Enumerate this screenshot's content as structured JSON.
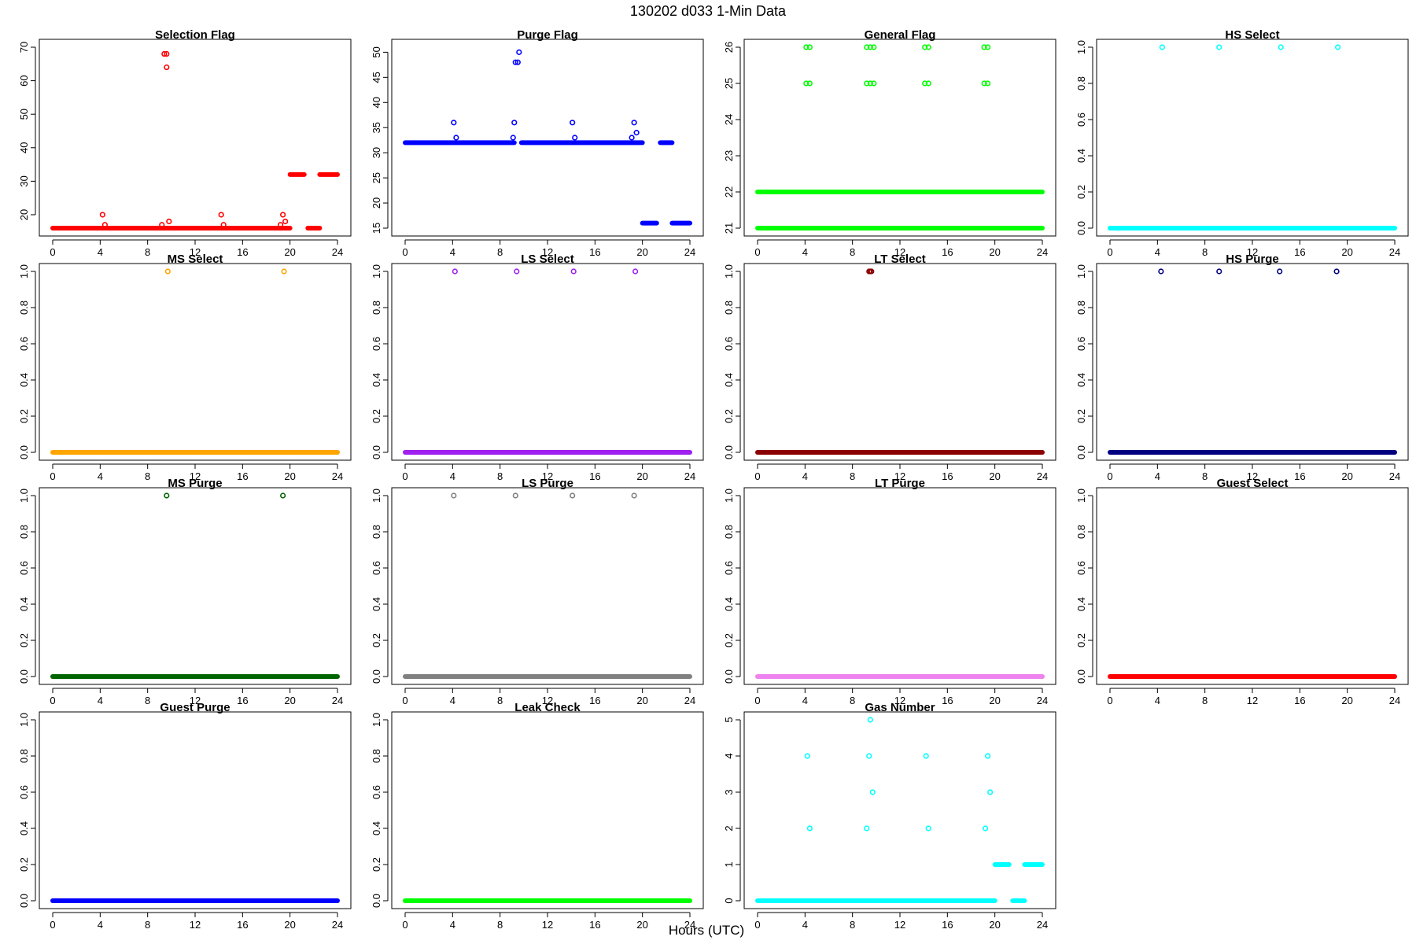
{
  "figure": {
    "title": "130202   d033   1-Min Data",
    "xlabel": "Hours (UTC)"
  },
  "chart_data": [
    {
      "type": "scatter",
      "title": "Selection Flag",
      "xlim": [
        0,
        24
      ],
      "xticks": [
        0,
        4,
        8,
        12,
        16,
        20,
        24
      ],
      "ylim": [
        16,
        70
      ],
      "yticks": [
        20,
        30,
        40,
        50,
        60,
        70
      ],
      "color": "#ff0000",
      "series": [
        {
          "x_start": 0,
          "x_end": 20.0,
          "y": 16
        },
        {
          "x_start": 20.0,
          "x_end": 21.2,
          "y": 32
        },
        {
          "x_start": 21.5,
          "x_end": 22.5,
          "y": 16
        },
        {
          "x_start": 22.5,
          "x_end": 24,
          "y": 32
        }
      ],
      "points": [
        {
          "x": 4.2,
          "y": 20
        },
        {
          "x": 4.4,
          "y": 17
        },
        {
          "x": 9.2,
          "y": 17
        },
        {
          "x": 9.4,
          "y": 68
        },
        {
          "x": 9.6,
          "y": 68
        },
        {
          "x": 9.6,
          "y": 64
        },
        {
          "x": 9.8,
          "y": 18
        },
        {
          "x": 14.2,
          "y": 20
        },
        {
          "x": 14.4,
          "y": 17
        },
        {
          "x": 19.2,
          "y": 17
        },
        {
          "x": 19.4,
          "y": 20
        },
        {
          "x": 19.6,
          "y": 18
        }
      ]
    },
    {
      "type": "scatter",
      "title": "Purge Flag",
      "xlim": [
        0,
        24
      ],
      "xticks": [
        0,
        4,
        8,
        12,
        16,
        20,
        24
      ],
      "ylim": [
        15,
        51
      ],
      "yticks": [
        15,
        20,
        25,
        30,
        35,
        40,
        45,
        50
      ],
      "color": "#0000ff",
      "series": [
        {
          "x_start": 0,
          "x_end": 9.2,
          "y": 32
        },
        {
          "x_start": 9.8,
          "x_end": 20.0,
          "y": 32
        },
        {
          "x_start": 20.0,
          "x_end": 21.2,
          "y": 16
        },
        {
          "x_start": 21.5,
          "x_end": 22.5,
          "y": 32
        },
        {
          "x_start": 22.5,
          "x_end": 24,
          "y": 16
        }
      ],
      "points": [
        {
          "x": 4.1,
          "y": 36
        },
        {
          "x": 4.3,
          "y": 33
        },
        {
          "x": 9.1,
          "y": 33
        },
        {
          "x": 9.2,
          "y": 36
        },
        {
          "x": 9.3,
          "y": 48
        },
        {
          "x": 9.5,
          "y": 48
        },
        {
          "x": 9.6,
          "y": 50
        },
        {
          "x": 14.1,
          "y": 36
        },
        {
          "x": 14.3,
          "y": 33
        },
        {
          "x": 19.1,
          "y": 33
        },
        {
          "x": 19.3,
          "y": 36
        },
        {
          "x": 19.5,
          "y": 34
        }
      ]
    },
    {
      "type": "scatter",
      "title": "General Flag",
      "xlim": [
        0,
        24
      ],
      "xticks": [
        0,
        4,
        8,
        12,
        16,
        20,
        24
      ],
      "ylim": [
        21,
        26
      ],
      "yticks": [
        21,
        22,
        23,
        24,
        25,
        26
      ],
      "color": "#00ff00",
      "series": [
        {
          "x_start": 0,
          "x_end": 24,
          "y": 22
        },
        {
          "x_start": 0,
          "x_end": 24,
          "y": 21
        }
      ],
      "points": [
        {
          "x": 4.1,
          "y": 26
        },
        {
          "x": 4.4,
          "y": 26
        },
        {
          "x": 4.1,
          "y": 25
        },
        {
          "x": 4.4,
          "y": 25
        },
        {
          "x": 9.2,
          "y": 26
        },
        {
          "x": 9.5,
          "y": 26
        },
        {
          "x": 9.8,
          "y": 26
        },
        {
          "x": 9.2,
          "y": 25
        },
        {
          "x": 9.5,
          "y": 25
        },
        {
          "x": 9.8,
          "y": 25
        },
        {
          "x": 14.1,
          "y": 26
        },
        {
          "x": 14.4,
          "y": 26
        },
        {
          "x": 14.1,
          "y": 25
        },
        {
          "x": 14.4,
          "y": 25
        },
        {
          "x": 19.1,
          "y": 26
        },
        {
          "x": 19.4,
          "y": 26
        },
        {
          "x": 19.1,
          "y": 25
        },
        {
          "x": 19.4,
          "y": 25
        }
      ]
    },
    {
      "type": "scatter",
      "title": "HS Select",
      "xlim": [
        0,
        24
      ],
      "xticks": [
        0,
        4,
        8,
        12,
        16,
        20,
        24
      ],
      "ylim": [
        0,
        1
      ],
      "yticks": [
        0.0,
        0.2,
        0.4,
        0.6,
        0.8,
        1.0
      ],
      "color": "#00ffff",
      "series": [
        {
          "x_start": 0,
          "x_end": 24,
          "y": 0
        }
      ],
      "points": [
        {
          "x": 4.4,
          "y": 1
        },
        {
          "x": 9.2,
          "y": 1
        },
        {
          "x": 14.4,
          "y": 1
        },
        {
          "x": 19.2,
          "y": 1
        }
      ]
    },
    {
      "type": "scatter",
      "title": "MS Select",
      "xlim": [
        0,
        24
      ],
      "xticks": [
        0,
        4,
        8,
        12,
        16,
        20,
        24
      ],
      "ylim": [
        0,
        1
      ],
      "yticks": [
        0.0,
        0.2,
        0.4,
        0.6,
        0.8,
        1.0
      ],
      "color": "#ffa500",
      "series": [
        {
          "x_start": 0,
          "x_end": 24,
          "y": 0
        }
      ],
      "points": [
        {
          "x": 9.7,
          "y": 1
        },
        {
          "x": 19.5,
          "y": 1
        }
      ]
    },
    {
      "type": "scatter",
      "title": "LS Select",
      "xlim": [
        0,
        24
      ],
      "xticks": [
        0,
        4,
        8,
        12,
        16,
        20,
        24
      ],
      "ylim": [
        0,
        1
      ],
      "yticks": [
        0.0,
        0.2,
        0.4,
        0.6,
        0.8,
        1.0
      ],
      "color": "#a020f0",
      "series": [
        {
          "x_start": 0,
          "x_end": 24,
          "y": 0
        }
      ],
      "points": [
        {
          "x": 4.2,
          "y": 1
        },
        {
          "x": 9.4,
          "y": 1
        },
        {
          "x": 14.2,
          "y": 1
        },
        {
          "x": 19.4,
          "y": 1
        }
      ]
    },
    {
      "type": "scatter",
      "title": "LT Select",
      "xlim": [
        0,
        24
      ],
      "xticks": [
        0,
        4,
        8,
        12,
        16,
        20,
        24
      ],
      "ylim": [
        0,
        1
      ],
      "yticks": [
        0.0,
        0.2,
        0.4,
        0.6,
        0.8,
        1.0
      ],
      "color": "#8b0000",
      "series": [
        {
          "x_start": 0,
          "x_end": 24,
          "y": 0
        }
      ],
      "points": [
        {
          "x": 9.4,
          "y": 1
        },
        {
          "x": 9.5,
          "y": 1
        },
        {
          "x": 9.6,
          "y": 1
        }
      ]
    },
    {
      "type": "scatter",
      "title": "HS Purge",
      "xlim": [
        0,
        24
      ],
      "xticks": [
        0,
        4,
        8,
        12,
        16,
        20,
        24
      ],
      "ylim": [
        0,
        1
      ],
      "yticks": [
        0.0,
        0.2,
        0.4,
        0.6,
        0.8,
        1.0
      ],
      "color": "#000080",
      "series": [
        {
          "x_start": 0,
          "x_end": 24,
          "y": 0
        }
      ],
      "points": [
        {
          "x": 4.3,
          "y": 1
        },
        {
          "x": 9.2,
          "y": 1
        },
        {
          "x": 14.3,
          "y": 1
        },
        {
          "x": 19.1,
          "y": 1
        }
      ]
    },
    {
      "type": "scatter",
      "title": "MS Purge",
      "xlim": [
        0,
        24
      ],
      "xticks": [
        0,
        4,
        8,
        12,
        16,
        20,
        24
      ],
      "ylim": [
        0,
        1
      ],
      "yticks": [
        0.0,
        0.2,
        0.4,
        0.6,
        0.8,
        1.0
      ],
      "color": "#006400",
      "series": [
        {
          "x_start": 0,
          "x_end": 24,
          "y": 0
        }
      ],
      "points": [
        {
          "x": 9.6,
          "y": 1
        },
        {
          "x": 19.4,
          "y": 1
        }
      ]
    },
    {
      "type": "scatter",
      "title": "LS Purge",
      "xlim": [
        0,
        24
      ],
      "xticks": [
        0,
        4,
        8,
        12,
        16,
        20,
        24
      ],
      "ylim": [
        0,
        1
      ],
      "yticks": [
        0.0,
        0.2,
        0.4,
        0.6,
        0.8,
        1.0
      ],
      "color": "#808080",
      "series": [
        {
          "x_start": 0,
          "x_end": 24,
          "y": 0
        }
      ],
      "points": [
        {
          "x": 4.1,
          "y": 1
        },
        {
          "x": 9.3,
          "y": 1
        },
        {
          "x": 14.1,
          "y": 1
        },
        {
          "x": 19.3,
          "y": 1
        }
      ]
    },
    {
      "type": "scatter",
      "title": "LT Purge",
      "xlim": [
        0,
        24
      ],
      "xticks": [
        0,
        4,
        8,
        12,
        16,
        20,
        24
      ],
      "ylim": [
        0,
        1
      ],
      "yticks": [
        0.0,
        0.2,
        0.4,
        0.6,
        0.8,
        1.0
      ],
      "color": "#ee82ee",
      "series": [
        {
          "x_start": 0,
          "x_end": 24,
          "y": 0
        }
      ],
      "points": []
    },
    {
      "type": "scatter",
      "title": "Guest Select",
      "xlim": [
        0,
        24
      ],
      "xticks": [
        0,
        4,
        8,
        12,
        16,
        20,
        24
      ],
      "ylim": [
        0,
        1
      ],
      "yticks": [
        0.0,
        0.2,
        0.4,
        0.6,
        0.8,
        1.0
      ],
      "color": "#ff0000",
      "series": [
        {
          "x_start": 0,
          "x_end": 24,
          "y": 0
        }
      ],
      "points": []
    },
    {
      "type": "scatter",
      "title": "Guest Purge",
      "xlim": [
        0,
        24
      ],
      "xticks": [
        0,
        4,
        8,
        12,
        16,
        20,
        24
      ],
      "ylim": [
        0,
        1
      ],
      "yticks": [
        0.0,
        0.2,
        0.4,
        0.6,
        0.8,
        1.0
      ],
      "color": "#0000ff",
      "series": [
        {
          "x_start": 0,
          "x_end": 24,
          "y": 0
        }
      ],
      "points": []
    },
    {
      "type": "scatter",
      "title": "Leak Check",
      "xlim": [
        0,
        24
      ],
      "xticks": [
        0,
        4,
        8,
        12,
        16,
        20,
        24
      ],
      "ylim": [
        0,
        1
      ],
      "yticks": [
        0.0,
        0.2,
        0.4,
        0.6,
        0.8,
        1.0
      ],
      "color": "#00ff00",
      "series": [
        {
          "x_start": 0,
          "x_end": 24,
          "y": 0
        }
      ],
      "points": []
    },
    {
      "type": "scatter",
      "title": "Gas Number",
      "xlim": [
        0,
        24
      ],
      "xticks": [
        0,
        4,
        8,
        12,
        16,
        20,
        24
      ],
      "ylim": [
        0,
        5
      ],
      "yticks": [
        0,
        1,
        2,
        3,
        4,
        5
      ],
      "color": "#00ffff",
      "series": [
        {
          "x_start": 0,
          "x_end": 20.0,
          "y": 0
        },
        {
          "x_start": 20.0,
          "x_end": 21.2,
          "y": 1
        },
        {
          "x_start": 21.5,
          "x_end": 22.5,
          "y": 0
        },
        {
          "x_start": 22.5,
          "x_end": 24,
          "y": 1
        }
      ],
      "points": [
        {
          "x": 4.2,
          "y": 4
        },
        {
          "x": 4.4,
          "y": 2
        },
        {
          "x": 9.2,
          "y": 2
        },
        {
          "x": 9.4,
          "y": 4
        },
        {
          "x": 9.5,
          "y": 5
        },
        {
          "x": 9.7,
          "y": 3
        },
        {
          "x": 14.2,
          "y": 4
        },
        {
          "x": 14.4,
          "y": 2
        },
        {
          "x": 19.2,
          "y": 2
        },
        {
          "x": 19.4,
          "y": 4
        },
        {
          "x": 19.6,
          "y": 3
        }
      ]
    }
  ]
}
